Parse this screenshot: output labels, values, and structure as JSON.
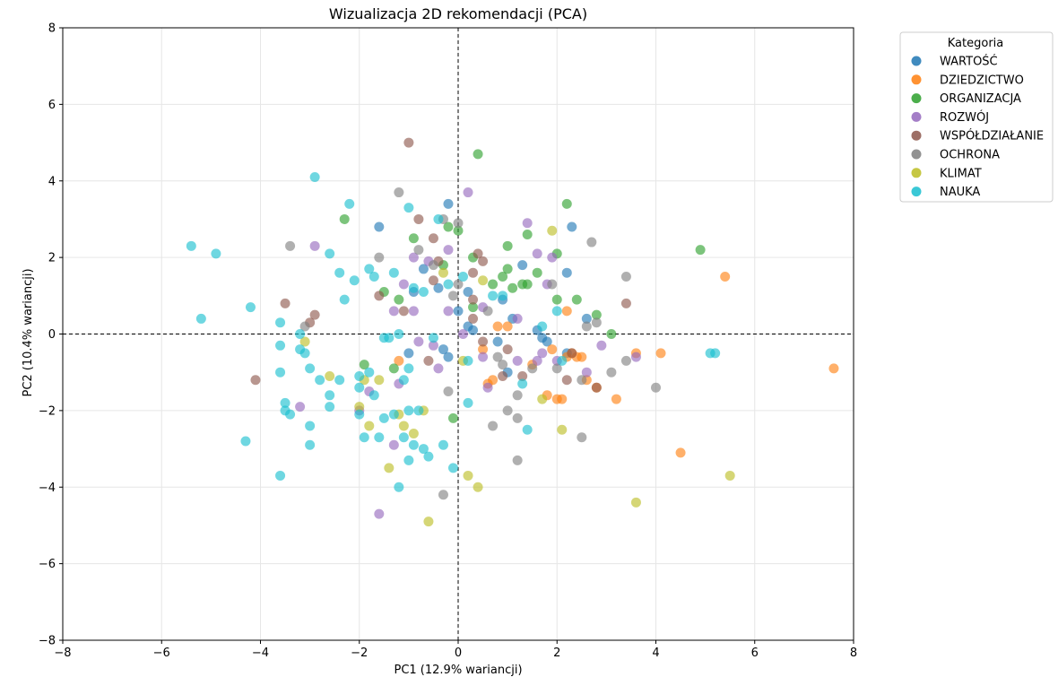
{
  "chart_data": {
    "type": "scatter",
    "title": "Wizualizacja 2D rekomendacji (PCA)",
    "xlabel": "PC1 (12.9% wariancji)",
    "ylabel": "PC2 (10.4% wariancji)",
    "xlim": [
      -8,
      8
    ],
    "ylim": [
      -8,
      8
    ],
    "xticks": [
      -8,
      -6,
      -4,
      -2,
      0,
      2,
      4,
      6,
      8
    ],
    "yticks": [
      -8,
      -6,
      -4,
      -2,
      0,
      2,
      4,
      6,
      8
    ],
    "xtick_labels": [
      "−8",
      "−6",
      "−4",
      "−2",
      "0",
      "2",
      "4",
      "6",
      "8"
    ],
    "ytick_labels": [
      "−8",
      "−6",
      "−4",
      "−2",
      "0",
      "2",
      "4",
      "6",
      "8"
    ],
    "grid": true,
    "reference_lines": [
      {
        "axis": "x",
        "value": 0,
        "style": "dashed"
      },
      {
        "axis": "y",
        "value": 0,
        "style": "dashed"
      }
    ],
    "legend": {
      "title": "Kategoria",
      "placement": "outside-top-right"
    },
    "series": [
      {
        "name": "WARTOŚĆ",
        "color": "#1f77b4",
        "points": [
          [
            -1.6,
            2.8
          ],
          [
            -0.2,
            3.4
          ],
          [
            2.3,
            2.8
          ],
          [
            -0.7,
            1.7
          ],
          [
            -0.4,
            1.2
          ],
          [
            0.2,
            1.1
          ],
          [
            2.2,
            1.6
          ],
          [
            1.3,
            1.8
          ],
          [
            0.0,
            0.6
          ],
          [
            -0.9,
            1.1
          ],
          [
            1.1,
            0.4
          ],
          [
            1.6,
            0.1
          ],
          [
            2.6,
            0.4
          ],
          [
            0.3,
            0.1
          ],
          [
            0.8,
            -0.2
          ],
          [
            -0.2,
            -0.6
          ],
          [
            1.0,
            -1.0
          ],
          [
            1.7,
            -0.1
          ],
          [
            -1.0,
            -0.5
          ],
          [
            -0.3,
            -0.4
          ],
          [
            0.2,
            0.2
          ],
          [
            1.8,
            -0.2
          ],
          [
            0.9,
            0.9
          ],
          [
            2.2,
            -0.5
          ]
        ]
      },
      {
        "name": "DZIEDZICTWO",
        "color": "#ff7f0e",
        "points": [
          [
            5.4,
            1.5
          ],
          [
            7.6,
            -0.9
          ],
          [
            4.5,
            -3.1
          ],
          [
            4.1,
            -0.5
          ],
          [
            3.2,
            -1.7
          ],
          [
            2.8,
            -1.4
          ],
          [
            2.1,
            -1.7
          ],
          [
            2.6,
            -1.2
          ],
          [
            2.2,
            -0.6
          ],
          [
            1.5,
            -0.8
          ],
          [
            0.8,
            0.2
          ],
          [
            2.2,
            0.6
          ],
          [
            0.6,
            -1.3
          ],
          [
            1.8,
            -1.6
          ],
          [
            2.5,
            -0.6
          ],
          [
            3.6,
            -0.5
          ],
          [
            -1.2,
            -0.7
          ],
          [
            0.7,
            -1.2
          ],
          [
            1.0,
            0.2
          ],
          [
            1.9,
            -0.4
          ],
          [
            2.3,
            -0.5
          ],
          [
            2.0,
            -1.7
          ],
          [
            0.5,
            -0.4
          ],
          [
            2.4,
            -0.6
          ]
        ]
      },
      {
        "name": "ORGANIZACJA",
        "color": "#2ca02c",
        "points": [
          [
            0.4,
            4.7
          ],
          [
            2.2,
            3.4
          ],
          [
            4.9,
            2.2
          ],
          [
            -2.3,
            3.0
          ],
          [
            -0.9,
            2.5
          ],
          [
            -0.2,
            2.8
          ],
          [
            0.0,
            2.7
          ],
          [
            1.0,
            2.3
          ],
          [
            1.4,
            2.6
          ],
          [
            2.0,
            2.1
          ],
          [
            0.3,
            2.0
          ],
          [
            -0.3,
            1.8
          ],
          [
            0.7,
            1.3
          ],
          [
            0.9,
            1.5
          ],
          [
            1.1,
            1.2
          ],
          [
            1.3,
            1.3
          ],
          [
            1.6,
            1.6
          ],
          [
            2.0,
            0.9
          ],
          [
            2.4,
            0.9
          ],
          [
            2.8,
            0.5
          ],
          [
            3.1,
            0.0
          ],
          [
            -1.2,
            0.9
          ],
          [
            -1.5,
            1.1
          ],
          [
            0.3,
            0.7
          ],
          [
            1.0,
            1.7
          ],
          [
            -1.9,
            -0.8
          ],
          [
            -1.3,
            -0.9
          ],
          [
            -0.1,
            -2.2
          ],
          [
            1.4,
            1.3
          ]
        ]
      },
      {
        "name": "ROZWÓJ",
        "color": "#9467bd",
        "points": [
          [
            0.2,
            3.7
          ],
          [
            1.4,
            2.9
          ],
          [
            -2.9,
            2.3
          ],
          [
            1.6,
            2.1
          ],
          [
            1.9,
            2.0
          ],
          [
            -0.9,
            2.0
          ],
          [
            -0.2,
            2.2
          ],
          [
            -0.6,
            1.9
          ],
          [
            -1.3,
            0.6
          ],
          [
            -0.9,
            0.6
          ],
          [
            -0.2,
            0.6
          ],
          [
            0.5,
            0.7
          ],
          [
            1.2,
            0.4
          ],
          [
            1.8,
            1.3
          ],
          [
            -1.1,
            1.3
          ],
          [
            0.1,
            0.0
          ],
          [
            -0.8,
            -0.2
          ],
          [
            -0.5,
            -0.3
          ],
          [
            -0.4,
            -0.9
          ],
          [
            0.5,
            -0.6
          ],
          [
            1.2,
            -0.7
          ],
          [
            1.6,
            -0.7
          ],
          [
            2.0,
            -0.7
          ],
          [
            2.6,
            -1.0
          ],
          [
            2.9,
            -0.3
          ],
          [
            3.6,
            -0.6
          ],
          [
            -3.2,
            -1.9
          ],
          [
            -2.0,
            -2.0
          ],
          [
            -1.8,
            -1.5
          ],
          [
            -1.2,
            -1.3
          ],
          [
            -1.3,
            -2.9
          ],
          [
            -1.6,
            -4.7
          ],
          [
            0.6,
            -1.4
          ],
          [
            1.7,
            -0.5
          ]
        ]
      },
      {
        "name": "WSPÓŁDZIAŁANIE",
        "color": "#8c564b",
        "points": [
          [
            -1.0,
            5.0
          ],
          [
            -0.8,
            3.0
          ],
          [
            -0.5,
            2.5
          ],
          [
            0.4,
            2.1
          ],
          [
            0.5,
            1.9
          ],
          [
            0.3,
            1.6
          ],
          [
            -0.4,
            1.9
          ],
          [
            -0.5,
            1.4
          ],
          [
            -1.6,
            1.0
          ],
          [
            -1.1,
            0.6
          ],
          [
            0.3,
            0.9
          ],
          [
            0.3,
            0.4
          ],
          [
            -3.5,
            0.8
          ],
          [
            -3.0,
            0.3
          ],
          [
            -2.9,
            0.5
          ],
          [
            3.4,
            0.8
          ],
          [
            -4.1,
            -1.2
          ],
          [
            0.5,
            -0.2
          ],
          [
            1.0,
            -0.4
          ],
          [
            0.9,
            -1.1
          ],
          [
            1.3,
            -1.1
          ],
          [
            2.2,
            -1.2
          ],
          [
            2.8,
            -1.4
          ],
          [
            -0.6,
            -0.7
          ],
          [
            2.3,
            -0.5
          ]
        ]
      },
      {
        "name": "OCHRONA",
        "color": "#7f7f7f",
        "points": [
          [
            -1.2,
            3.7
          ],
          [
            -0.3,
            3.0
          ],
          [
            0.0,
            2.9
          ],
          [
            2.7,
            2.4
          ],
          [
            3.4,
            1.5
          ],
          [
            -3.4,
            2.3
          ],
          [
            -1.6,
            2.0
          ],
          [
            -0.8,
            2.2
          ],
          [
            -0.5,
            1.8
          ],
          [
            0.0,
            1.3
          ],
          [
            0.6,
            0.6
          ],
          [
            2.6,
            0.2
          ],
          [
            2.8,
            0.3
          ],
          [
            1.9,
            1.3
          ],
          [
            -3.1,
            0.2
          ],
          [
            0.8,
            -0.6
          ],
          [
            1.5,
            -0.9
          ],
          [
            2.0,
            -0.9
          ],
          [
            2.5,
            -1.2
          ],
          [
            3.1,
            -1.0
          ],
          [
            3.4,
            -0.7
          ],
          [
            4.0,
            -1.4
          ],
          [
            -0.2,
            -1.5
          ],
          [
            1.0,
            -2.0
          ],
          [
            1.2,
            -2.2
          ],
          [
            0.7,
            -2.4
          ],
          [
            1.2,
            -3.3
          ],
          [
            2.5,
            -2.7
          ],
          [
            -0.3,
            -4.2
          ],
          [
            1.2,
            -1.6
          ],
          [
            0.9,
            -0.8
          ],
          [
            -0.1,
            1.0
          ]
        ]
      },
      {
        "name": "KLIMAT",
        "color": "#bcbd22",
        "points": [
          [
            1.9,
            2.7
          ],
          [
            0.5,
            1.4
          ],
          [
            -0.3,
            1.6
          ],
          [
            -2.0,
            -1.9
          ],
          [
            -1.6,
            -1.2
          ],
          [
            -1.9,
            -1.2
          ],
          [
            -1.2,
            -2.1
          ],
          [
            -0.7,
            -2.0
          ],
          [
            -1.1,
            -2.4
          ],
          [
            -0.9,
            -2.6
          ],
          [
            -1.8,
            -2.4
          ],
          [
            -1.4,
            -3.5
          ],
          [
            -0.6,
            -4.9
          ],
          [
            0.2,
            -3.7
          ],
          [
            0.4,
            -4.0
          ],
          [
            2.1,
            -2.5
          ],
          [
            3.6,
            -4.4
          ],
          [
            5.5,
            -3.7
          ],
          [
            0.1,
            -0.7
          ],
          [
            1.7,
            -1.7
          ],
          [
            -2.6,
            -1.1
          ],
          [
            -3.1,
            -0.2
          ]
        ]
      },
      {
        "name": "NAUKA",
        "color": "#17becf",
        "points": [
          [
            -2.9,
            4.1
          ],
          [
            -5.4,
            2.3
          ],
          [
            -4.9,
            2.1
          ],
          [
            -5.2,
            0.4
          ],
          [
            -4.2,
            0.7
          ],
          [
            -2.2,
            3.4
          ],
          [
            -1.0,
            3.3
          ],
          [
            -0.4,
            3.0
          ],
          [
            -2.6,
            2.1
          ],
          [
            -2.4,
            1.6
          ],
          [
            -2.1,
            1.4
          ],
          [
            -1.8,
            1.7
          ],
          [
            -2.3,
            0.9
          ],
          [
            -1.7,
            1.5
          ],
          [
            -1.3,
            1.6
          ],
          [
            -0.9,
            1.2
          ],
          [
            -0.7,
            1.1
          ],
          [
            -0.2,
            1.3
          ],
          [
            0.1,
            1.5
          ],
          [
            0.7,
            1.0
          ],
          [
            0.9,
            1.0
          ],
          [
            1.7,
            0.2
          ],
          [
            2.0,
            0.6
          ],
          [
            -3.6,
            0.3
          ],
          [
            -3.6,
            -0.3
          ],
          [
            -3.2,
            0.0
          ],
          [
            -3.2,
            -0.4
          ],
          [
            -3.1,
            -0.5
          ],
          [
            -3.6,
            -1.0
          ],
          [
            -3.0,
            -0.9
          ],
          [
            -2.4,
            -1.2
          ],
          [
            -2.0,
            -1.4
          ],
          [
            -2.0,
            -1.1
          ],
          [
            -1.8,
            -1.0
          ],
          [
            -1.7,
            -1.6
          ],
          [
            -1.5,
            -0.1
          ],
          [
            -1.4,
            -0.1
          ],
          [
            -1.2,
            0.0
          ],
          [
            -1.0,
            -0.9
          ],
          [
            -2.8,
            -1.2
          ],
          [
            -2.6,
            -1.6
          ],
          [
            -3.5,
            -1.8
          ],
          [
            -3.5,
            -2.0
          ],
          [
            -3.4,
            -2.1
          ],
          [
            -3.0,
            -2.4
          ],
          [
            -3.0,
            -2.9
          ],
          [
            -2.6,
            -1.9
          ],
          [
            -2.0,
            -2.1
          ],
          [
            -1.9,
            -2.7
          ],
          [
            -1.5,
            -2.2
          ],
          [
            -1.3,
            -2.1
          ],
          [
            -1.1,
            -2.7
          ],
          [
            -1.0,
            -2.0
          ],
          [
            -0.9,
            -2.9
          ],
          [
            -0.7,
            -3.0
          ],
          [
            -0.3,
            -2.9
          ],
          [
            -0.6,
            -3.2
          ],
          [
            -1.0,
            -3.3
          ],
          [
            -1.2,
            -4.0
          ],
          [
            -1.6,
            -2.7
          ],
          [
            -3.6,
            -3.7
          ],
          [
            -4.3,
            -2.8
          ],
          [
            -0.1,
            -3.5
          ],
          [
            0.2,
            -1.8
          ],
          [
            0.2,
            -0.7
          ],
          [
            1.3,
            -1.3
          ],
          [
            1.4,
            -2.5
          ],
          [
            2.1,
            -0.7
          ],
          [
            5.1,
            -0.5
          ],
          [
            5.2,
            -0.5
          ],
          [
            -0.5,
            -0.1
          ],
          [
            -1.1,
            -1.2
          ],
          [
            -0.8,
            -2.0
          ]
        ]
      }
    ]
  }
}
